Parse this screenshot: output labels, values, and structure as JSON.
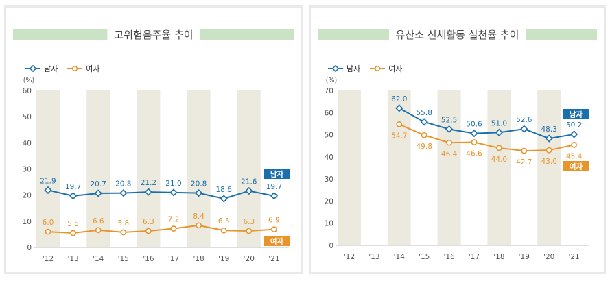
{
  "colors": {
    "male": "#1a6fad",
    "female": "#e8942b",
    "column": "#ece9df",
    "title_band": "#c9e3c4"
  },
  "legend": {
    "male": "남자",
    "female": "여자"
  },
  "chart_data": [
    {
      "type": "line",
      "title": "고위험음주율 추이",
      "ylabel": "(%)",
      "ylim": [
        0,
        60
      ],
      "yticks": [
        "0",
        "10",
        "20",
        "30",
        "40",
        "50",
        "60"
      ],
      "categories": [
        "'12",
        "'13",
        "'14",
        "'15",
        "'16",
        "'17",
        "'18",
        "'19",
        "'20",
        "'21"
      ],
      "series": [
        {
          "name": "남자",
          "key": "male",
          "values": [
            21.9,
            19.7,
            20.7,
            20.8,
            21.2,
            21.0,
            20.8,
            18.6,
            21.6,
            19.7
          ],
          "labels": [
            "21.9",
            "19.7",
            "20.7",
            "20.8",
            "21.2",
            "21.0",
            "20.8",
            "18.6",
            "21.6",
            "19.7"
          ],
          "tag": "남자"
        },
        {
          "name": "여자",
          "key": "female",
          "values": [
            6.0,
            5.5,
            6.6,
            5.8,
            6.3,
            7.2,
            8.4,
            6.5,
            6.3,
            6.9
          ],
          "labels": [
            "6.0",
            "5.5",
            "6.6",
            "5.8",
            "6.3",
            "7.2",
            "8.4",
            "6.5",
            "6.3",
            "6.9"
          ],
          "tag": "여자"
        }
      ]
    },
    {
      "type": "line",
      "title": "유산소 신체활동 실천율 추이",
      "ylabel": "(%)",
      "ylim": [
        0,
        70
      ],
      "yticks": [
        "0",
        "10",
        "20",
        "30",
        "40",
        "50",
        "60",
        "70"
      ],
      "categories": [
        "'12",
        "'13",
        "'14",
        "'15",
        "'16",
        "'17",
        "'18",
        "'19",
        "'20",
        "'21"
      ],
      "series": [
        {
          "name": "남자",
          "key": "male",
          "values": [
            null,
            null,
            62.0,
            55.8,
            52.5,
            50.6,
            51.0,
            52.6,
            48.3,
            50.2
          ],
          "labels": [
            null,
            null,
            "62.0",
            "55.8",
            "52.5",
            "50.6",
            "51.0",
            "52.6",
            "48.3",
            "50.2"
          ],
          "tag": "남자"
        },
        {
          "name": "여자",
          "key": "female",
          "values": [
            null,
            null,
            54.7,
            49.8,
            46.4,
            46.6,
            44.0,
            42.7,
            43.0,
            45.4
          ],
          "labels": [
            null,
            null,
            "54.7",
            "49.8",
            "46.4",
            "46.6",
            "44.0",
            "42.7",
            "43.0",
            "45.4"
          ],
          "tag": "여자"
        }
      ]
    }
  ]
}
